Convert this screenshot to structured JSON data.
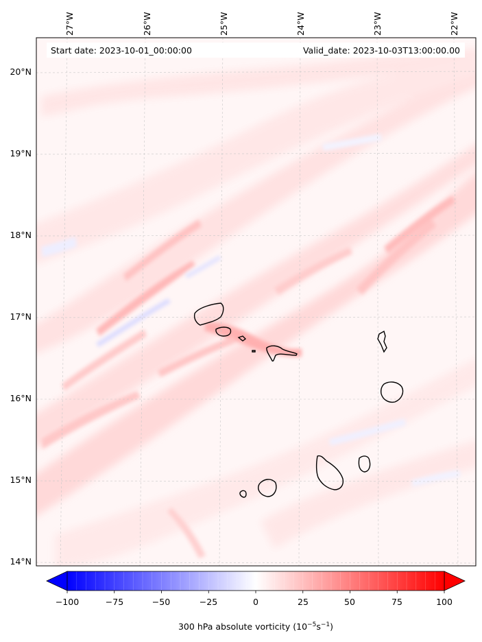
{
  "map": {
    "longitude_labels": [
      "27°W",
      "26°W",
      "25°W",
      "24°W",
      "23°W",
      "22°W"
    ],
    "latitude_labels": [
      "20°N",
      "19°N",
      "18°N",
      "17°N",
      "16°N",
      "15°N",
      "14°N"
    ],
    "start_text": "Start date: 2023-10-01_00:00:00",
    "valid_text": "Valid_date: 2023-10-03T13:00:00.00",
    "extent": {
      "lon_min": -27.35,
      "lon_max": -21.8,
      "lat_min": 13.95,
      "lat_max": 20.45
    },
    "islands": [
      "Santo Antão",
      "São Vicente",
      "Santa Luzia",
      "Branco",
      "São Nicolau",
      "Sal",
      "Boa Vista",
      "Maio",
      "Santiago",
      "Fogo",
      "Brava"
    ]
  },
  "colorbar": {
    "tick_labels": [
      "−100",
      "−75",
      "−50",
      "−25",
      "0",
      "25",
      "50",
      "75",
      "100"
    ],
    "label_prefix": "300 hPa absolute vorticity (10",
    "label_exp1": "−5",
    "label_mid": "s",
    "label_exp2": "−1",
    "label_suffix": ")",
    "min": -100,
    "max": 100,
    "colors": {
      "negative": "#0000ff",
      "zero": "#ffffff",
      "positive": "#ff0000"
    }
  }
}
